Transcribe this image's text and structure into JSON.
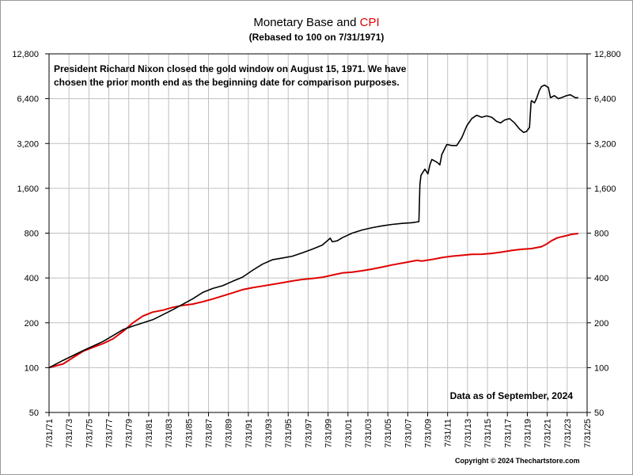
{
  "header": {
    "title_main": "Monetary Base and",
    "title_cpi": "CPI",
    "subtitle": "(Rebased to 100 on 7/31/1971)"
  },
  "annotation": {
    "line1": "President Richard Nixon closed the gold window on August 15, 1971.  We have",
    "line2": "chosen the prior month end as the beginning date for comparison purposes."
  },
  "data_note": "Data as of September, 2024",
  "copyright": "Copyright © 2024 Thechartstore.com",
  "colors": {
    "monetary_base": "#000000",
    "cpi": "#e00000",
    "grid": "#c0c0c0"
  },
  "chart_data": {
    "type": "line",
    "title": "Monetary Base and CPI",
    "subtitle": "(Rebased to 100 on 7/31/1971)",
    "y_scale": "log2",
    "ylim": [
      50,
      12800
    ],
    "y_ticks": [
      50,
      100,
      200,
      400,
      800,
      1600,
      3200,
      6400,
      12800
    ],
    "y_tick_labels": [
      "50",
      "100",
      "200",
      "400",
      "800",
      "1,600",
      "3,200",
      "6,400",
      "12,800"
    ],
    "xlim": [
      1971.58,
      2025.58
    ],
    "x_ticks": [
      1971.58,
      1973.58,
      1975.58,
      1977.58,
      1979.58,
      1981.58,
      1983.58,
      1985.58,
      1987.58,
      1989.58,
      1991.58,
      1993.58,
      1995.58,
      1997.58,
      1999.58,
      2001.58,
      2003.58,
      2005.58,
      2007.58,
      2009.58,
      2011.58,
      2013.58,
      2015.58,
      2017.58,
      2019.58,
      2021.58,
      2023.58,
      2025.58
    ],
    "x_tick_labels": [
      "7/31/71",
      "7/31/73",
      "7/31/75",
      "7/31/77",
      "7/31/79",
      "7/31/81",
      "7/31/83",
      "7/31/85",
      "7/31/87",
      "7/31/89",
      "7/31/91",
      "7/31/93",
      "7/31/95",
      "7/31/97",
      "7/31/99",
      "7/31/01",
      "7/31/03",
      "7/31/05",
      "7/31/07",
      "7/31/09",
      "7/31/11",
      "7/31/13",
      "7/31/15",
      "7/31/17",
      "7/31/19",
      "7/31/21",
      "7/31/23",
      "7/31/25"
    ],
    "grid": true,
    "series": [
      {
        "name": "Monetary Base",
        "color": "#000000",
        "x": [
          1971.58,
          1973.0,
          1975.0,
          1977.0,
          1979.0,
          1980.0,
          1982.0,
          1984.0,
          1986.0,
          1987.0,
          1988.0,
          1989.0,
          1990.0,
          1991.0,
          1992.0,
          1993.0,
          1994.0,
          1995.0,
          1996.0,
          1997.0,
          1998.0,
          1999.0,
          1999.8,
          2000.0,
          2000.5,
          2001.0,
          2002.0,
          2003.0,
          2004.0,
          2005.0,
          2006.0,
          2007.0,
          2008.0,
          2008.7,
          2008.8,
          2008.9,
          2009.0,
          2009.3,
          2009.6,
          2009.8,
          2010.0,
          2010.5,
          2010.8,
          2011.0,
          2011.5,
          2012.0,
          2012.5,
          2013.0,
          2013.5,
          2014.0,
          2014.5,
          2015.0,
          2015.5,
          2016.0,
          2016.5,
          2016.9,
          2017.3,
          2017.8,
          2018.3,
          2018.8,
          2019.2,
          2019.5,
          2019.8,
          2019.95,
          2020.0,
          2020.3,
          2020.5,
          2020.8,
          2021.0,
          2021.3,
          2021.7,
          2021.9,
          2022.3,
          2022.7,
          2023.0,
          2023.5,
          2023.9,
          2024.4,
          2024.7
        ],
        "y": [
          100,
          112,
          130,
          150,
          180,
          190,
          210,
          245,
          290,
          320,
          340,
          355,
          380,
          405,
          450,
          495,
          530,
          545,
          560,
          590,
          625,
          665,
          740,
          700,
          710,
          745,
          800,
          840,
          870,
          895,
          915,
          930,
          940,
          955,
          1700,
          1950,
          2000,
          2150,
          2000,
          2300,
          2500,
          2400,
          2300,
          2700,
          3150,
          3100,
          3100,
          3500,
          4200,
          4700,
          4950,
          4800,
          4900,
          4800,
          4500,
          4400,
          4600,
          4700,
          4400,
          4000,
          3800,
          3850,
          4100,
          6000,
          6200,
          6000,
          6400,
          7300,
          7700,
          7900,
          7600,
          6500,
          6700,
          6400,
          6500,
          6700,
          6800,
          6500,
          6500
        ]
      },
      {
        "name": "CPI",
        "color": "#e00000",
        "x": [
          1971.58,
          1973.0,
          1974.0,
          1975.0,
          1976.0,
          1977.0,
          1978.0,
          1979.0,
          1980.0,
          1981.0,
          1982.0,
          1983.0,
          1984.0,
          1985.0,
          1986.0,
          1987.0,
          1988.0,
          1989.0,
          1990.0,
          1991.0,
          1992.0,
          1993.0,
          1994.0,
          1995.0,
          1996.0,
          1997.0,
          1998.0,
          1999.0,
          2000.0,
          2001.0,
          2002.0,
          2003.0,
          2004.0,
          2005.0,
          2006.0,
          2007.0,
          2008.5,
          2009.0,
          2010.0,
          2011.0,
          2012.0,
          2013.0,
          2014.0,
          2015.0,
          2016.0,
          2017.0,
          2018.0,
          2019.0,
          2020.0,
          2021.0,
          2021.5,
          2022.0,
          2022.6,
          2023.0,
          2023.6,
          2024.0,
          2024.7
        ],
        "y": [
          100,
          106,
          117,
          129,
          137,
          145,
          156,
          175,
          200,
          222,
          236,
          243,
          254,
          262,
          267,
          277,
          289,
          303,
          318,
          334,
          344,
          353,
          362,
          372,
          382,
          391,
          397,
          404,
          418,
          432,
          438,
          447,
          459,
          473,
          489,
          503,
          525,
          520,
          532,
          548,
          560,
          568,
          577,
          578,
          585,
          597,
          612,
          623,
          630,
          649,
          675,
          710,
          745,
          755,
          772,
          785,
          795
        ]
      }
    ]
  }
}
